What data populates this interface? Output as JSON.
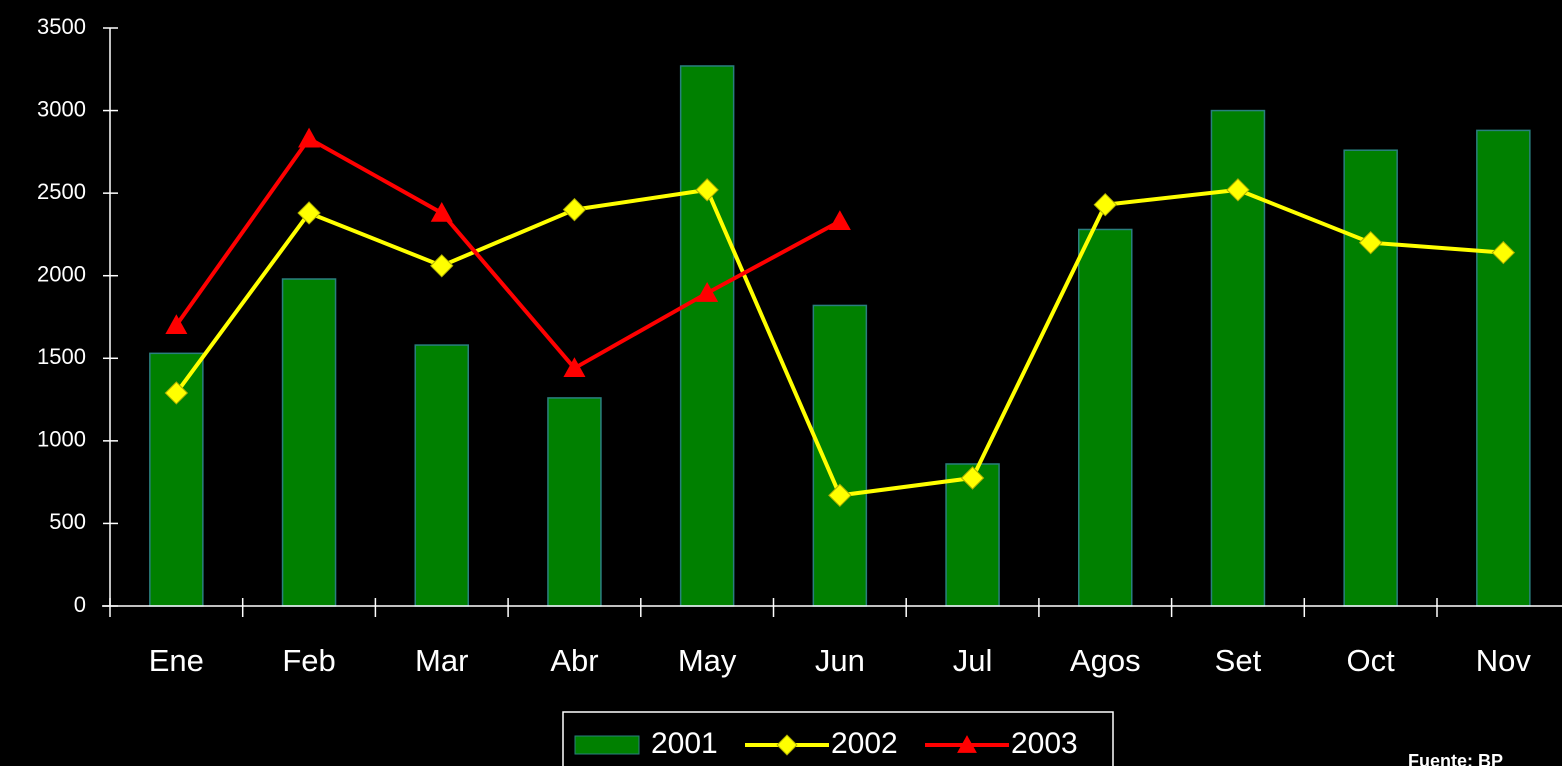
{
  "chart_data": {
    "type": "bar-line",
    "categories": [
      "Ene",
      "Feb",
      "Mar",
      "Abr",
      "May",
      "Jun",
      "Jul",
      "Agos",
      "Set",
      "Oct",
      "Nov"
    ],
    "series": [
      {
        "name": "2001",
        "type": "bar",
        "color": "#008000",
        "values": [
          1530,
          1980,
          1580,
          1260,
          3270,
          1820,
          860,
          2280,
          3000,
          2760,
          2880
        ]
      },
      {
        "name": "2002",
        "type": "line",
        "marker": "diamond",
        "color": "#ffff00",
        "values": [
          1290,
          2380,
          2060,
          2400,
          2520,
          670,
          775,
          2430,
          2520,
          2200,
          2140
        ]
      },
      {
        "name": "2003",
        "type": "line",
        "marker": "triangle",
        "color": "#ff0000",
        "values": [
          1700,
          2830,
          2380,
          1440,
          1895,
          2330,
          null,
          null,
          null,
          null,
          null
        ]
      }
    ],
    "ylim": [
      0,
      3500
    ],
    "yticks": [
      0,
      500,
      1000,
      1500,
      2000,
      2500,
      3000,
      3500
    ],
    "legend": "bottom",
    "source": "Fuente: BP"
  }
}
